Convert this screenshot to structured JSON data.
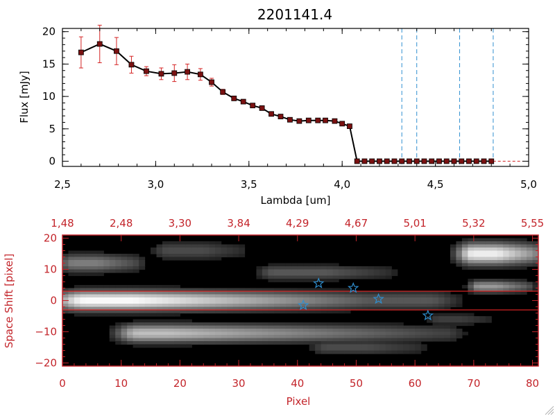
{
  "chart_data": [
    {
      "type": "line",
      "title": "2201141.4",
      "xlabel": "Lambda [um]",
      "ylabel": "Flux [mJy]",
      "xlim": [
        2.5,
        5.0
      ],
      "ylim": [
        -0.8,
        20.5
      ],
      "xticks": [
        2.5,
        3.0,
        3.5,
        4.0,
        4.5,
        5.0
      ],
      "xtick_labels": [
        "2,5",
        "3,0",
        "3,5",
        "4,0",
        "4,5",
        "5,0"
      ],
      "yticks": [
        0,
        5,
        10,
        15,
        20
      ],
      "ytick_labels": [
        "0",
        "5",
        "10",
        "15",
        "20"
      ],
      "series": [
        {
          "name": "Flux",
          "x": [
            2.6,
            2.7,
            2.79,
            2.87,
            2.95,
            3.03,
            3.1,
            3.17,
            3.24,
            3.3,
            3.36,
            3.42,
            3.47,
            3.52,
            3.57,
            3.62,
            3.67,
            3.72,
            3.77,
            3.82,
            3.87,
            3.91,
            3.96,
            4.0,
            4.04,
            4.08,
            4.12,
            4.16,
            4.2,
            4.24,
            4.28,
            4.32,
            4.36,
            4.4,
            4.44,
            4.48,
            4.52,
            4.56,
            4.6,
            4.64,
            4.68,
            4.72,
            4.76,
            4.8
          ],
          "y": [
            16.8,
            18.1,
            17.0,
            14.9,
            13.9,
            13.5,
            13.6,
            13.8,
            13.4,
            12.2,
            10.7,
            9.7,
            9.2,
            8.6,
            8.2,
            7.3,
            6.9,
            6.4,
            6.2,
            6.3,
            6.3,
            6.3,
            6.2,
            5.8,
            5.4,
            0,
            0,
            0,
            0,
            0,
            0,
            0,
            0,
            0,
            0,
            0,
            0,
            0,
            0,
            0,
            0,
            0,
            0,
            0
          ],
          "yerr": [
            2.4,
            2.9,
            2.1,
            1.3,
            0.7,
            0.9,
            1.3,
            1.2,
            0.9,
            0.6,
            0.4,
            0.3,
            0.3,
            0.3,
            0.2,
            0.2,
            0.2,
            0.2,
            0.1,
            0.1,
            0.1,
            0.1,
            0.1,
            0.3,
            0.2,
            0,
            0,
            0,
            0,
            0,
            0,
            0,
            0,
            0,
            0,
            0,
            0,
            0,
            0,
            0,
            0,
            0,
            0,
            0
          ],
          "color": "#000000",
          "marker_color": "#7a1111",
          "errorbar_color": "#d42222"
        }
      ],
      "vlines": [
        4.32,
        4.4,
        4.63,
        4.81
      ],
      "vline_color": "#2f8fd0",
      "hline": 0,
      "hline_color": "#d42222"
    },
    {
      "type": "heatmap",
      "xlabel": "Pixel",
      "ylabel": "Space Shift [pixel]",
      "xlim": [
        0,
        81
      ],
      "ylim": [
        -21,
        21
      ],
      "xticks": [
        0,
        10,
        20,
        30,
        40,
        50,
        60,
        70,
        80
      ],
      "xtick_labels": [
        "0",
        "10",
        "20",
        "30",
        "40",
        "50",
        "60",
        "70",
        "80"
      ],
      "yticks": [
        -20,
        -10,
        0,
        10,
        20
      ],
      "ytick_labels": [
        "−20",
        "−10",
        "0",
        "10",
        "20"
      ],
      "top_axis_ticks": [
        0,
        10,
        20,
        30,
        40,
        50,
        60,
        70,
        80
      ],
      "top_axis_labels": [
        "1,48",
        "2,48",
        "3,30",
        "3,84",
        "4,29",
        "4,67",
        "5,01",
        "5,32",
        "5,55"
      ],
      "hlines": [
        3,
        -3
      ],
      "hline_color": "#d42222",
      "stars": [
        {
          "x": 41.0,
          "y": -1.5
        },
        {
          "x": 43.6,
          "y": 5.5
        },
        {
          "x": 49.5,
          "y": 4.0
        },
        {
          "x": 53.8,
          "y": 0.5
        },
        {
          "x": 62.2,
          "y": -4.8
        }
      ],
      "star_color": "#2f8fd0",
      "axis_color": "#c3242a",
      "blobs": [
        {
          "x0": 4,
          "x1": 62,
          "y": 0,
          "hx": 6,
          "hy": 3.2,
          "peak": 1.0,
          "cx": 12,
          "falloff": 40
        },
        {
          "x0": 13,
          "x1": 65,
          "y": -10.5,
          "hx": 4,
          "hy": 3.0,
          "peak": 0.75,
          "cx": 18,
          "falloff": 46
        },
        {
          "x0": 70,
          "x1": 80,
          "y": 15,
          "hx": 3,
          "hy": 3.5,
          "peak": 0.95,
          "cx": 74,
          "falloff": 10
        },
        {
          "x0": 71,
          "x1": 79,
          "y": 4.5,
          "hx": 2,
          "hy": 2.0,
          "peak": 0.6,
          "cx": 74,
          "falloff": 8
        },
        {
          "x0": 2,
          "x1": 12,
          "y": 12,
          "hx": 3,
          "hy": 3.0,
          "peak": 0.5,
          "cx": 6,
          "falloff": 10
        },
        {
          "x0": 18,
          "x1": 30,
          "y": 16,
          "hx": 3,
          "hy": 3.0,
          "peak": 0.3,
          "cx": 24,
          "falloff": 10
        },
        {
          "x0": 36,
          "x1": 55,
          "y": 9,
          "hx": 3,
          "hy": 2.5,
          "peak": 0.35,
          "cx": 45,
          "falloff": 15
        },
        {
          "x0": 45,
          "x1": 60,
          "y": -15,
          "hx": 3,
          "hy": 2.5,
          "peak": 0.3,
          "cx": 52,
          "falloff": 15
        },
        {
          "x0": 64,
          "x1": 72,
          "y": -6,
          "hx": 2,
          "hy": 2.0,
          "peak": 0.25,
          "cx": 68,
          "falloff": 8
        }
      ]
    }
  ]
}
